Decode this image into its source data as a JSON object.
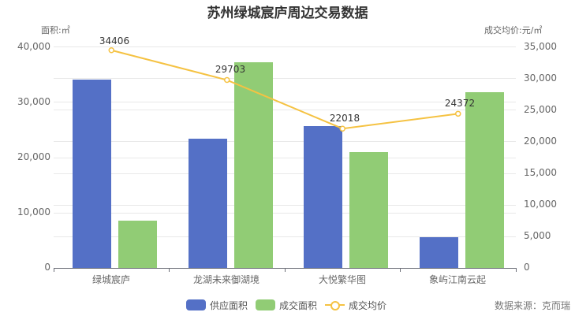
{
  "title": "苏州绿城宸庐周边交易数据",
  "left_axis_name": "面积:㎡",
  "right_axis_name": "成交均价:元/㎡",
  "left_ticks": [
    "40,000",
    "30,000",
    "20,000",
    "10,000",
    "0"
  ],
  "right_ticks": [
    "35,000",
    "30,000",
    "25,000",
    "20,000",
    "15,000",
    "10,000",
    "5,000",
    "0"
  ],
  "categories": [
    "绿城宸庐",
    "龙湖未来御湖境",
    "大悦繁华图",
    "象屿江南云起"
  ],
  "legend": {
    "supply": "供应面积",
    "deal": "成交面积",
    "price": "成交均价"
  },
  "source": "数据来源：克而瑞",
  "colors": {
    "supply": "#5470c6",
    "deal": "#91cc75",
    "price": "#f5c242"
  },
  "price_labels": [
    "34406",
    "29703",
    "22018",
    "24372"
  ],
  "chart_data": {
    "type": "bar",
    "title": "苏州绿城宸庐周边交易数据",
    "xlabel": "",
    "ylabel": "面积:㎡",
    "ylabel_right": "成交均价:元/㎡",
    "categories": [
      "绿城宸庐",
      "龙湖未来御湖境",
      "大悦繁华图",
      "象屿江南云起"
    ],
    "ylim": [
      0,
      40000
    ],
    "ylim_right": [
      0,
      35000
    ],
    "grid": true,
    "legend_position": "bottom",
    "series": [
      {
        "name": "供应面积",
        "type": "bar",
        "axis": "left",
        "values": [
          34000,
          23350,
          25600,
          5600
        ]
      },
      {
        "name": "成交面积",
        "type": "bar",
        "axis": "left",
        "values": [
          8550,
          37200,
          20900,
          31700
        ]
      },
      {
        "name": "成交均价",
        "type": "line",
        "axis": "right",
        "values": [
          34406,
          29703,
          22018,
          24372
        ]
      }
    ],
    "annotations": [
      "数据来源：克而瑞"
    ]
  }
}
